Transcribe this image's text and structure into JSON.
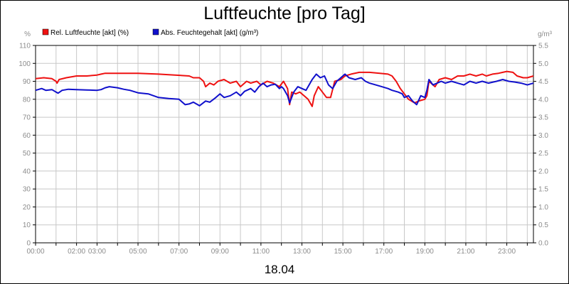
{
  "chart_data": {
    "type": "line",
    "title": "Luftfeuchte [pro Tag]",
    "date_label": "18.04",
    "left_unit": "%",
    "right_unit": "g/m³",
    "x_ticks": [
      "00:00",
      "02:00",
      "03:00",
      "05:00",
      "07:00",
      "09:00",
      "11:00",
      "13:00",
      "15:00",
      "17:00",
      "19:00",
      "21:00",
      "23:00"
    ],
    "x_tick_hours": [
      0,
      2,
      3,
      5,
      7,
      9,
      11,
      13,
      15,
      17,
      19,
      21,
      23
    ],
    "xlim": [
      0,
      24.3
    ],
    "y_left_ticks": [
      "0",
      "10",
      "20",
      "30",
      "40",
      "50",
      "60",
      "70",
      "80",
      "90",
      "100",
      "110"
    ],
    "ylim_left": [
      0,
      110
    ],
    "y_right_ticks": [
      "0.0",
      "0.5",
      "1.0",
      "1.5",
      "2.0",
      "2.5",
      "3.0",
      "3.5",
      "4.0",
      "4.5",
      "5.0",
      "5.5"
    ],
    "ylim_right": [
      0,
      5.5
    ],
    "grid": true,
    "legend_position": "top-left",
    "series": [
      {
        "name": "Rel. Luftfeuchte [akt] (%)",
        "color": "#ee1111",
        "axis": "left",
        "points": [
          [
            0.0,
            91.5
          ],
          [
            0.4,
            92
          ],
          [
            0.8,
            91.5
          ],
          [
            1.0,
            90
          ],
          [
            1.05,
            89
          ],
          [
            1.15,
            91
          ],
          [
            1.5,
            92
          ],
          [
            2.0,
            93
          ],
          [
            2.5,
            93
          ],
          [
            3.0,
            93.5
          ],
          [
            3.2,
            94
          ],
          [
            3.4,
            94.5
          ],
          [
            4.0,
            94.5
          ],
          [
            5.0,
            94.5
          ],
          [
            6.0,
            94
          ],
          [
            6.8,
            93.5
          ],
          [
            7.5,
            93
          ],
          [
            7.7,
            92
          ],
          [
            8.0,
            92
          ],
          [
            8.2,
            90
          ],
          [
            8.3,
            87
          ],
          [
            8.5,
            89
          ],
          [
            8.7,
            88
          ],
          [
            8.9,
            90
          ],
          [
            9.2,
            91
          ],
          [
            9.5,
            89
          ],
          [
            9.8,
            90
          ],
          [
            10.0,
            87
          ],
          [
            10.3,
            90
          ],
          [
            10.5,
            89
          ],
          [
            10.8,
            90
          ],
          [
            11.0,
            88
          ],
          [
            11.3,
            90
          ],
          [
            11.6,
            89
          ],
          [
            11.9,
            87
          ],
          [
            12.1,
            90
          ],
          [
            12.3,
            86
          ],
          [
            12.4,
            77
          ],
          [
            12.5,
            84
          ],
          [
            12.7,
            83
          ],
          [
            12.9,
            84
          ],
          [
            13.1,
            82
          ],
          [
            13.3,
            80
          ],
          [
            13.5,
            76
          ],
          [
            13.6,
            82
          ],
          [
            13.8,
            87
          ],
          [
            14.0,
            84
          ],
          [
            14.2,
            81
          ],
          [
            14.4,
            81
          ],
          [
            14.6,
            90
          ],
          [
            14.9,
            91
          ],
          [
            15.1,
            93
          ],
          [
            15.4,
            94
          ],
          [
            15.8,
            95
          ],
          [
            16.3,
            95
          ],
          [
            16.8,
            94.5
          ],
          [
            17.2,
            94
          ],
          [
            17.4,
            93
          ],
          [
            17.6,
            90
          ],
          [
            17.8,
            86
          ],
          [
            18.0,
            83
          ],
          [
            18.2,
            80
          ],
          [
            18.5,
            78
          ],
          [
            18.7,
            79
          ],
          [
            19.0,
            80
          ],
          [
            19.1,
            82
          ],
          [
            19.2,
            90
          ],
          [
            19.4,
            88
          ],
          [
            19.5,
            87
          ],
          [
            19.7,
            91
          ],
          [
            20.0,
            92
          ],
          [
            20.3,
            91
          ],
          [
            20.6,
            93
          ],
          [
            20.9,
            93
          ],
          [
            21.2,
            94
          ],
          [
            21.5,
            93
          ],
          [
            21.8,
            94
          ],
          [
            22.0,
            93
          ],
          [
            22.3,
            94
          ],
          [
            22.6,
            94.5
          ],
          [
            22.8,
            95
          ],
          [
            23.0,
            95.5
          ],
          [
            23.3,
            95
          ],
          [
            23.5,
            93
          ],
          [
            23.8,
            92
          ],
          [
            24.0,
            92
          ],
          [
            24.3,
            93
          ]
        ]
      },
      {
        "name": "Abs. Feuchtegehalt [akt] (g/m³)",
        "color": "#1010cc",
        "axis": "right",
        "points": [
          [
            0.0,
            4.25
          ],
          [
            0.3,
            4.3
          ],
          [
            0.5,
            4.25
          ],
          [
            0.8,
            4.27
          ],
          [
            1.0,
            4.2
          ],
          [
            1.1,
            4.17
          ],
          [
            1.3,
            4.25
          ],
          [
            1.6,
            4.28
          ],
          [
            2.0,
            4.27
          ],
          [
            2.5,
            4.26
          ],
          [
            3.0,
            4.25
          ],
          [
            3.2,
            4.27
          ],
          [
            3.4,
            4.32
          ],
          [
            3.6,
            4.35
          ],
          [
            4.0,
            4.32
          ],
          [
            4.3,
            4.28
          ],
          [
            4.6,
            4.25
          ],
          [
            5.0,
            4.18
          ],
          [
            5.5,
            4.15
          ],
          [
            6.0,
            4.05
          ],
          [
            6.5,
            4.02
          ],
          [
            7.0,
            4.0
          ],
          [
            7.1,
            3.95
          ],
          [
            7.3,
            3.85
          ],
          [
            7.5,
            3.87
          ],
          [
            7.7,
            3.92
          ],
          [
            8.0,
            3.82
          ],
          [
            8.3,
            3.95
          ],
          [
            8.5,
            3.92
          ],
          [
            8.8,
            4.05
          ],
          [
            9.0,
            4.15
          ],
          [
            9.2,
            4.05
          ],
          [
            9.5,
            4.1
          ],
          [
            9.8,
            4.2
          ],
          [
            10.0,
            4.1
          ],
          [
            10.2,
            4.22
          ],
          [
            10.5,
            4.3
          ],
          [
            10.7,
            4.2
          ],
          [
            10.9,
            4.35
          ],
          [
            11.1,
            4.45
          ],
          [
            11.3,
            4.35
          ],
          [
            11.5,
            4.4
          ],
          [
            11.7,
            4.42
          ],
          [
            11.9,
            4.3
          ],
          [
            12.0,
            4.35
          ],
          [
            12.1,
            4.3
          ],
          [
            12.3,
            4.1
          ],
          [
            12.4,
            3.9
          ],
          [
            12.6,
            4.2
          ],
          [
            12.8,
            4.35
          ],
          [
            13.0,
            4.3
          ],
          [
            13.2,
            4.25
          ],
          [
            13.4,
            4.45
          ],
          [
            13.5,
            4.55
          ],
          [
            13.7,
            4.7
          ],
          [
            13.9,
            4.6
          ],
          [
            14.1,
            4.65
          ],
          [
            14.3,
            4.4
          ],
          [
            14.5,
            4.3
          ],
          [
            14.7,
            4.5
          ],
          [
            14.9,
            4.6
          ],
          [
            15.1,
            4.7
          ],
          [
            15.3,
            4.6
          ],
          [
            15.6,
            4.55
          ],
          [
            15.9,
            4.6
          ],
          [
            16.1,
            4.5
          ],
          [
            16.3,
            4.45
          ],
          [
            16.6,
            4.4
          ],
          [
            16.9,
            4.35
          ],
          [
            17.2,
            4.3
          ],
          [
            17.4,
            4.25
          ],
          [
            17.7,
            4.2
          ],
          [
            17.9,
            4.15
          ],
          [
            18.0,
            4.05
          ],
          [
            18.2,
            4.1
          ],
          [
            18.4,
            3.95
          ],
          [
            18.6,
            3.85
          ],
          [
            18.8,
            4.1
          ],
          [
            19.0,
            4.05
          ],
          [
            19.1,
            4.25
          ],
          [
            19.2,
            4.55
          ],
          [
            19.4,
            4.4
          ],
          [
            19.6,
            4.45
          ],
          [
            19.8,
            4.5
          ],
          [
            20.0,
            4.45
          ],
          [
            20.3,
            4.5
          ],
          [
            20.6,
            4.45
          ],
          [
            20.9,
            4.4
          ],
          [
            21.2,
            4.5
          ],
          [
            21.5,
            4.45
          ],
          [
            21.8,
            4.5
          ],
          [
            22.1,
            4.45
          ],
          [
            22.5,
            4.5
          ],
          [
            22.8,
            4.55
          ],
          [
            23.1,
            4.5
          ],
          [
            23.4,
            4.48
          ],
          [
            23.7,
            4.45
          ],
          [
            24.0,
            4.4
          ],
          [
            24.3,
            4.45
          ]
        ]
      }
    ]
  }
}
